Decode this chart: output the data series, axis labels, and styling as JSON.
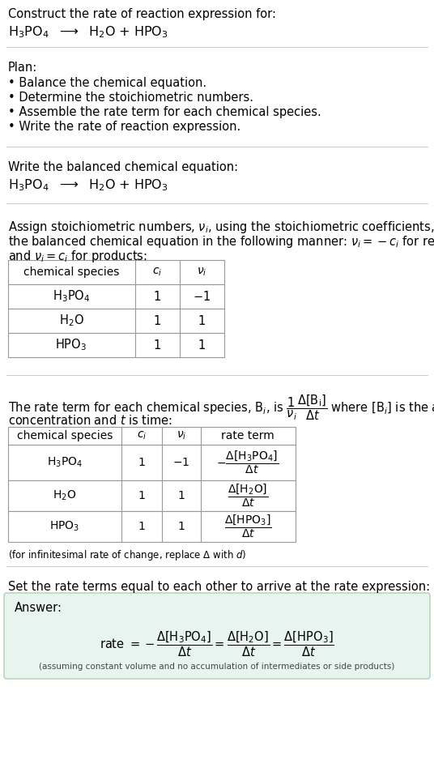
{
  "title_text": "Construct the rate of reaction expression for:",
  "reaction_line": "H$_3$PO$_4$  $\\longrightarrow$  H$_2$O + HPO$_3$",
  "plan_header": "Plan:",
  "plan_items": [
    "• Balance the chemical equation.",
    "• Determine the stoichiometric numbers.",
    "• Assemble the rate term for each chemical species.",
    "• Write the rate of reaction expression."
  ],
  "balanced_header": "Write the balanced chemical equation:",
  "balanced_eq": "H$_3$PO$_4$  $\\longrightarrow$  H$_2$O + HPO$_3$",
  "stoich_intro_1": "Assign stoichiometric numbers, $\\nu_i$, using the stoichiometric coefficients, $c_i$, from",
  "stoich_intro_2": "the balanced chemical equation in the following manner: $\\nu_i = -c_i$ for reactants",
  "stoich_intro_3": "and $\\nu_i = c_i$ for products:",
  "table1_col_headers": [
    "chemical species",
    "$c_i$",
    "$\\nu_i$"
  ],
  "table1_rows": [
    [
      "H$_3$PO$_4$",
      "1",
      "$-1$"
    ],
    [
      "H$_2$O",
      "1",
      "1"
    ],
    [
      "HPO$_3$",
      "1",
      "1"
    ]
  ],
  "rate_intro_1": "The rate term for each chemical species, B$_i$, is $\\dfrac{1}{\\nu_i}\\dfrac{\\Delta[\\mathrm{B_i}]}{\\Delta t}$ where [B$_i$] is the amount",
  "rate_intro_2": "concentration and $t$ is time:",
  "table2_col_headers": [
    "chemical species",
    "$c_i$",
    "$\\nu_i$",
    "rate term"
  ],
  "table2_rows": [
    [
      "H$_3$PO$_4$",
      "1",
      "$-1$",
      "$-\\dfrac{\\Delta[\\mathrm{H_3PO_4}]}{\\Delta t}$"
    ],
    [
      "H$_2$O",
      "1",
      "1",
      "$\\dfrac{\\Delta[\\mathrm{H_2O}]}{\\Delta t}$"
    ],
    [
      "HPO$_3$",
      "1",
      "1",
      "$\\dfrac{\\Delta[\\mathrm{HPO_3}]}{\\Delta t}$"
    ]
  ],
  "infinitesimal_note": "(for infinitesimal rate of change, replace Δ with $d$)",
  "set_rate_text": "Set the rate terms equal to each other to arrive at the rate expression:",
  "answer_label": "Answer:",
  "answer_eq": "rate $= -\\dfrac{\\Delta[\\mathrm{H_3PO_4}]}{\\Delta t} = \\dfrac{\\Delta[\\mathrm{H_2O}]}{\\Delta t} = \\dfrac{\\Delta[\\mathrm{HPO_3}]}{\\Delta t}$",
  "answer_note": "(assuming constant volume and no accumulation of intermediates or side products)",
  "bg_color": "#ffffff",
  "text_color": "#000000",
  "table_border_color": "#999999",
  "answer_box_bg": "#e8f4f0",
  "answer_box_border": "#aaccaa",
  "separator_color": "#cccccc",
  "fig_width": 5.36,
  "fig_height": 9.58,
  "dpi": 100
}
